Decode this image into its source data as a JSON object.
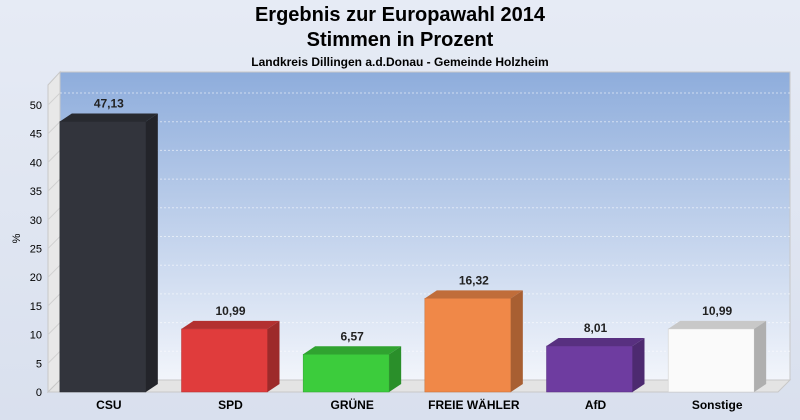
{
  "chart_data": {
    "type": "bar",
    "title": "Ergebnis zur Europawahl 2014",
    "subtitle": "Stimmen in Prozent",
    "subtitle2": "Landkreis Dillingen a.d.Donau - Gemeinde Holzheim",
    "ylabel": "%",
    "xlabel": "",
    "ylim": [
      0,
      50
    ],
    "yticks": [
      0,
      5,
      10,
      15,
      20,
      25,
      30,
      35,
      40,
      45,
      50
    ],
    "categories": [
      "CSU",
      "SPD",
      "GRÜNE",
      "FREIE WÄHLER",
      "AfD",
      "Sonstige"
    ],
    "values": [
      47.13,
      10.99,
      6.57,
      16.32,
      8.01,
      10.99
    ],
    "value_labels": [
      "47,13",
      "10,99",
      "6,57",
      "16,32",
      "8,01",
      "10,99"
    ],
    "colors": [
      "#32343c",
      "#e03c3c",
      "#3ccc3c",
      "#f08848",
      "#6e3ca0",
      "#fafafa"
    ],
    "grid": true,
    "legend": "none"
  }
}
